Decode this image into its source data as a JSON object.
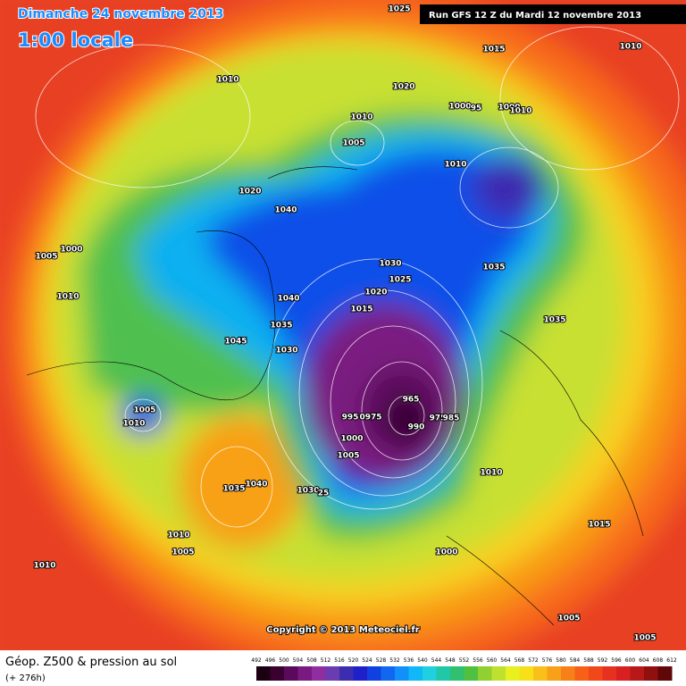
{
  "header": {
    "date": "Dimanche 24 novembre 2013",
    "time": "1:00 locale",
    "run": "Run GFS 12 Z du Mardi 12 novembre 2013"
  },
  "map": {
    "isobar_labels": [
      "1025",
      "1015",
      "1010",
      "1010",
      "1020",
      "1010",
      "1000",
      "95",
      "1000",
      "1010",
      "1005",
      "1010",
      "1020",
      "1040",
      "1000",
      "1005",
      "1030",
      "1035",
      "1025",
      "1020",
      "1010",
      "1040",
      "1015",
      "1035",
      "1035",
      "1045",
      "1030",
      "965",
      "1005",
      "1010",
      "995",
      "0975",
      "975",
      "985",
      "990",
      "1000",
      "1005",
      "1010",
      "1035",
      "1040",
      "1030",
      "25",
      "1015",
      "1010",
      "1000",
      "1005",
      "1010",
      "1005",
      "1005"
    ],
    "copyright": "Copyright © 2013 Meteociel.fr"
  },
  "footer": {
    "title": "Géop. Z500 & pression au sol",
    "lead": "(+ 276h)",
    "scale_labels": [
      "492",
      "496",
      "500",
      "504",
      "508",
      "512",
      "516",
      "520",
      "524",
      "528",
      "532",
      "536",
      "540",
      "544",
      "548",
      "552",
      "556",
      "560",
      "564",
      "568",
      "572",
      "576",
      "580",
      "584",
      "588",
      "592",
      "596",
      "600",
      "604",
      "608",
      "612"
    ],
    "scale_colors": [
      "#1a0010",
      "#3a0030",
      "#5a0a5a",
      "#7a1a80",
      "#8e2ea0",
      "#6a3cb0",
      "#3c2cb0",
      "#2020c8",
      "#1040e0",
      "#1068f0",
      "#1090f8",
      "#10b8f8",
      "#20d0e0",
      "#20c8a8",
      "#30c070",
      "#50c040",
      "#90d030",
      "#c0e030",
      "#e8f020",
      "#f8e018",
      "#f8c018",
      "#f8a018",
      "#f88018",
      "#f86018",
      "#f04818",
      "#e83020",
      "#d82020",
      "#b81818",
      "#901010",
      "#600808"
    ]
  }
}
